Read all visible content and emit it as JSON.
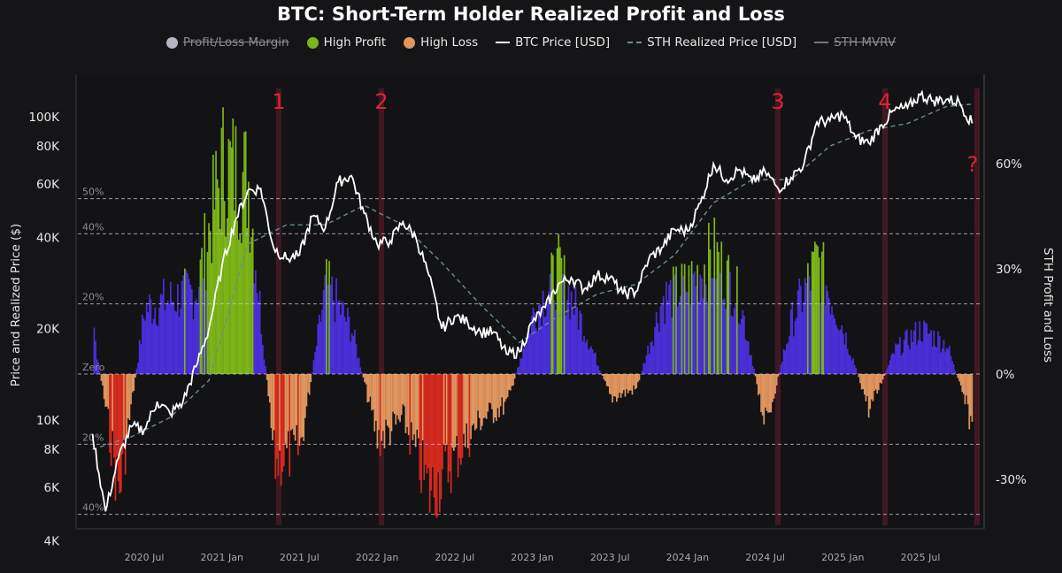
{
  "title": "BTC: Short-Term Holder Realized Profit and Loss",
  "legend": [
    {
      "label": "Profit/Loss Margin",
      "type": "dot",
      "color": "#b5b5c0",
      "disabled": true
    },
    {
      "label": "High Profit",
      "type": "dot",
      "color": "#7cb518",
      "disabled": false
    },
    {
      "label": "High Loss",
      "type": "dot",
      "color": "#e0955e",
      "disabled": false
    },
    {
      "label": "BTC Price [USD]",
      "type": "line",
      "color": "#ffffff",
      "disabled": false
    },
    {
      "label": "STH Realized Price [USD]",
      "type": "dash",
      "color": "#6a8c99",
      "disabled": false
    },
    {
      "label": "STH MVRV",
      "type": "line",
      "color": "#777777",
      "disabled": true
    }
  ],
  "axes": {
    "left_label": "Price and Realized Price ($)",
    "right_label": "STH Profit and Loss",
    "left_ticks": [
      "100K",
      "80K",
      "60K",
      "40K",
      "20K",
      "10K",
      "8K",
      "6K",
      "4K"
    ],
    "right_ticks": [
      "60%",
      "30%",
      "0%",
      "-30%"
    ],
    "x_ticks": [
      "2020 Jul",
      "2021 Jan",
      "2021 Jul",
      "2022 Jan",
      "2022 Jul",
      "2023 Jan",
      "2023 Jul",
      "2024 Jan",
      "2024 Jul",
      "2025 Jan",
      "2025 Jul"
    ],
    "level_lines": [
      "50%",
      "40%",
      "20%",
      "Zero",
      "20%",
      "40%"
    ]
  },
  "markers": [
    "1",
    "2",
    "3",
    "4",
    "?"
  ],
  "colors": {
    "background": "#151517",
    "profit": "#4a2fd8",
    "high_profit": "#7cb518",
    "loss": "#e0955e",
    "high_loss": "#d42a1e",
    "marker": "#e0213a",
    "marker_band": "#4a1a25"
  },
  "chart_data": {
    "type": "bar+line",
    "title": "BTC: Short-Term Holder Realized Profit and Loss",
    "xlabel": "",
    "ylabel_left": "Price and Realized Price ($)",
    "ylabel_right": "STH Profit and Loss",
    "y_left_scale": "log",
    "y_left_range": [
      4000,
      130000
    ],
    "y_right_range": [
      -45,
      75
    ],
    "x_range": [
      "2020 Mar",
      "2025 Nov"
    ],
    "x_ticks": [
      "2020 Jul",
      "2021 Jan",
      "2021 Jul",
      "2022 Jan",
      "2022 Jul",
      "2023 Jan",
      "2023 Jul",
      "2024 Jan",
      "2024 Jul",
      "2025 Jan",
      "2025 Jul"
    ],
    "level_lines_pct": [
      50,
      40,
      20,
      0,
      -20,
      -40
    ],
    "annotations": [
      {
        "label": "1",
        "date": "2021 May"
      },
      {
        "label": "2",
        "date": "2021 Dec"
      },
      {
        "label": "3",
        "date": "2024 Aug"
      },
      {
        "label": "4",
        "date": "2025 Mar"
      },
      {
        "label": "?",
        "date": "2025 Nov"
      }
    ],
    "series": [
      {
        "name": "BTC Price [USD]",
        "x": [
          "2020-03",
          "2020-04",
          "2020-05",
          "2020-06",
          "2020-07",
          "2020-08",
          "2020-09",
          "2020-10",
          "2020-11",
          "2020-12",
          "2021-01",
          "2021-02",
          "2021-03",
          "2021-04",
          "2021-05",
          "2021-06",
          "2021-07",
          "2021-08",
          "2021-09",
          "2021-10",
          "2021-11",
          "2021-12",
          "2022-01",
          "2022-02",
          "2022-03",
          "2022-04",
          "2022-05",
          "2022-06",
          "2022-07",
          "2022-08",
          "2022-09",
          "2022-10",
          "2022-11",
          "2022-12",
          "2023-01",
          "2023-02",
          "2023-03",
          "2023-04",
          "2023-05",
          "2023-06",
          "2023-07",
          "2023-08",
          "2023-09",
          "2023-10",
          "2023-11",
          "2023-12",
          "2024-01",
          "2024-02",
          "2024-03",
          "2024-04",
          "2024-05",
          "2024-06",
          "2024-07",
          "2024-08",
          "2024-09",
          "2024-10",
          "2024-11",
          "2024-12",
          "2025-01",
          "2025-02",
          "2025-03",
          "2025-04",
          "2025-05",
          "2025-06",
          "2025-07",
          "2025-08",
          "2025-09",
          "2025-10",
          "2025-11"
        ],
        "values": [
          9000,
          5000,
          7500,
          9500,
          9300,
          11500,
          10500,
          11500,
          15000,
          20000,
          32000,
          45000,
          57000,
          58000,
          37000,
          34000,
          35000,
          47000,
          43000,
          61000,
          64000,
          48000,
          38000,
          39000,
          45000,
          40000,
          30000,
          20000,
          22000,
          21000,
          19500,
          19500,
          16500,
          16800,
          21000,
          23500,
          28000,
          29500,
          27000,
          30000,
          29500,
          26000,
          26500,
          34000,
          37000,
          42500,
          42000,
          52000,
          70000,
          62000,
          67000,
          61000,
          66000,
          58000,
          63000,
          70000,
          96000,
          97000,
          102000,
          85000,
          82000,
          94000,
          105000,
          107000,
          118000,
          113000,
          114000,
          112000,
          95000
        ]
      },
      {
        "name": "STH Realized Price [USD]",
        "x": [
          "2020-03",
          "2020-06",
          "2020-09",
          "2020-12",
          "2021-03",
          "2021-06",
          "2021-09",
          "2021-12",
          "2022-03",
          "2022-06",
          "2022-09",
          "2022-12",
          "2023-03",
          "2023-06",
          "2023-09",
          "2023-12",
          "2024-03",
          "2024-06",
          "2024-09",
          "2024-12",
          "2025-03",
          "2025-06",
          "2025-09",
          "2025-11"
        ],
        "values": [
          8000,
          8800,
          10200,
          13500,
          38000,
          44000,
          44000,
          51000,
          44000,
          33000,
          24000,
          18000,
          22000,
          26000,
          28000,
          35000,
          52000,
          62000,
          62000,
          80000,
          90000,
          95000,
          108000,
          110000
        ]
      },
      {
        "name": "STH Profit/Loss Margin (%)",
        "note": "positive = profit (blue), high profit > ~30% (green); negative = loss (orange), high loss < ~-20% (red)",
        "x": [
          "2020-03",
          "2020-05",
          "2020-07",
          "2020-09",
          "2020-11",
          "2021-01",
          "2021-03",
          "2021-05",
          "2021-07",
          "2021-09",
          "2021-11",
          "2022-01",
          "2022-03",
          "2022-05",
          "2022-07",
          "2022-09",
          "2022-11",
          "2023-01",
          "2023-03",
          "2023-05",
          "2023-07",
          "2023-09",
          "2023-11",
          "2024-01",
          "2024-03",
          "2024-05",
          "2024-07",
          "2024-09",
          "2024-11",
          "2025-01",
          "2025-03",
          "2025-05",
          "2025-07",
          "2025-09",
          "2025-11"
        ],
        "values": [
          15,
          -40,
          22,
          25,
          28,
          70,
          65,
          -30,
          -25,
          30,
          15,
          -22,
          -15,
          -40,
          -28,
          -15,
          -10,
          20,
          35,
          15,
          -8,
          -5,
          25,
          30,
          40,
          25,
          -18,
          18,
          38,
          15,
          -12,
          8,
          15,
          10,
          -18
        ]
      }
    ]
  }
}
